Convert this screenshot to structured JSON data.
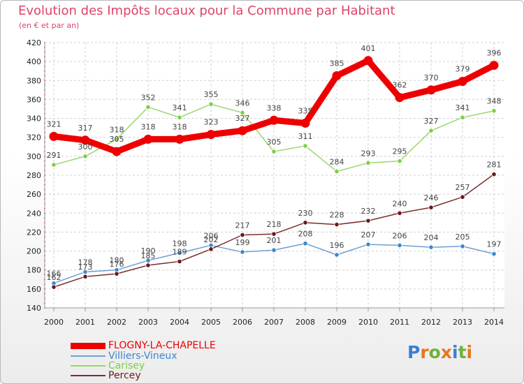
{
  "header": {
    "title": "Evolution des Impôts locaux pour la Commune par Habitant",
    "subtitle": "(en € et par an)"
  },
  "brand": {
    "letters": [
      "P",
      "r",
      "o",
      "x",
      "i",
      "t",
      "i"
    ],
    "colors": [
      "#3b7fd4",
      "#e8761c",
      "#6cb33e",
      "#e8761c",
      "#3b7fd4",
      "#6cb33e",
      "#e8761c"
    ]
  },
  "chart_data": {
    "type": "line",
    "title": "Evolution des Impôts locaux pour la Commune par Habitant",
    "subtitle": "(en € et par an)",
    "xlabel": "",
    "ylabel": "",
    "ylim": [
      140,
      420
    ],
    "yticks": [
      140,
      160,
      180,
      200,
      220,
      240,
      260,
      280,
      300,
      320,
      340,
      360,
      380,
      400,
      420
    ],
    "categories": [
      "2000",
      "2001",
      "2002",
      "2003",
      "2004",
      "2005",
      "2006",
      "2007",
      "2008",
      "2009",
      "2010",
      "2011",
      "2012",
      "2013",
      "2014"
    ],
    "legend_position": "bottom-left",
    "grid": true,
    "series": [
      {
        "name": "FLOGNY-LA-CHAPELLE",
        "color": "#ee0000",
        "marker": "#ee0000",
        "highlight": true,
        "values": [
          321,
          317,
          305,
          318,
          318,
          323,
          327,
          338,
          335,
          385,
          401,
          362,
          370,
          379,
          396
        ]
      },
      {
        "name": "Villiers-Vineux",
        "color": "#6f9fd0",
        "marker": "#3a88cc",
        "highlight": false,
        "values": [
          166,
          178,
          180,
          190,
          198,
          206,
          199,
          201,
          208,
          196,
          207,
          206,
          204,
          205,
          197
        ]
      },
      {
        "name": "Carisey",
        "color": "#99d66d",
        "marker": "#7fcf3f",
        "highlight": false,
        "values": [
          291,
          300,
          318,
          352,
          341,
          355,
          346,
          305,
          311,
          284,
          293,
          295,
          327,
          341,
          348
        ]
      },
      {
        "name": "Percey",
        "color": "#7a2e2e",
        "marker": "#6a1a1a",
        "highlight": false,
        "values": [
          162,
          173,
          176,
          185,
          189,
          202,
          217,
          218,
          230,
          228,
          232,
          240,
          246,
          257,
          281
        ]
      }
    ]
  }
}
